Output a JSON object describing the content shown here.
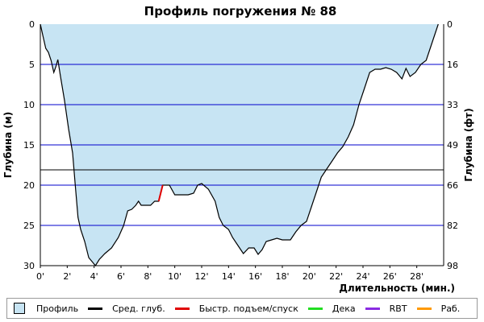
{
  "chart_data": {
    "type": "area",
    "title": "Профиль погружения № 88",
    "xlabel": "Длительность (мин.)",
    "ylabel_left": "Глубина (м)",
    "ylabel_right": "Глубина (фт)",
    "xlim": [
      0,
      30
    ],
    "ylim": [
      0,
      30
    ],
    "x_ticks": [
      "0'",
      "2'",
      "4'",
      "6'",
      "8'",
      "10'",
      "12'",
      "14'",
      "16'",
      "18'",
      "20'",
      "22'",
      "24'",
      "26'",
      "28'"
    ],
    "y_ticks_left": [
      "0",
      "5",
      "10",
      "15",
      "20",
      "25",
      "30"
    ],
    "y_ticks_right": [
      "0",
      "16",
      "33",
      "49",
      "66",
      "82",
      "98"
    ],
    "avg_depth": 18.1,
    "fill_color": "#c7e4f3",
    "grid_color": "#0000cc",
    "profile": [
      [
        0.0,
        0.0
      ],
      [
        0.2,
        1.5
      ],
      [
        0.4,
        3.0
      ],
      [
        0.6,
        3.5
      ],
      [
        0.8,
        4.5
      ],
      [
        1.0,
        6.0
      ],
      [
        1.15,
        5.3
      ],
      [
        1.3,
        4.4
      ],
      [
        1.5,
        6.5
      ],
      [
        1.8,
        9.5
      ],
      [
        2.1,
        13.0
      ],
      [
        2.4,
        16.0
      ],
      [
        2.6,
        20.0
      ],
      [
        2.8,
        24.0
      ],
      [
        3.0,
        25.5
      ],
      [
        3.3,
        27.0
      ],
      [
        3.6,
        29.0
      ],
      [
        3.9,
        29.6
      ],
      [
        4.1,
        30.0
      ],
      [
        4.4,
        29.2
      ],
      [
        4.8,
        28.5
      ],
      [
        5.3,
        27.8
      ],
      [
        5.8,
        26.5
      ],
      [
        6.2,
        25.0
      ],
      [
        6.5,
        23.2
      ],
      [
        6.8,
        23.0
      ],
      [
        7.1,
        22.5
      ],
      [
        7.3,
        22.0
      ],
      [
        7.5,
        22.5
      ],
      [
        7.9,
        22.5
      ],
      [
        8.2,
        22.5
      ],
      [
        8.5,
        22.0
      ],
      [
        8.8,
        22.0
      ],
      [
        9.1,
        20.0
      ],
      [
        9.6,
        20.0
      ],
      [
        10.0,
        21.2
      ],
      [
        10.5,
        21.2
      ],
      [
        11.0,
        21.2
      ],
      [
        11.4,
        21.0
      ],
      [
        11.7,
        20.0
      ],
      [
        12.0,
        19.8
      ],
      [
        12.5,
        20.5
      ],
      [
        13.0,
        22.0
      ],
      [
        13.3,
        24.0
      ],
      [
        13.6,
        25.0
      ],
      [
        14.0,
        25.5
      ],
      [
        14.3,
        26.5
      ],
      [
        14.7,
        27.5
      ],
      [
        15.1,
        28.5
      ],
      [
        15.5,
        27.8
      ],
      [
        15.9,
        27.8
      ],
      [
        16.2,
        28.6
      ],
      [
        16.5,
        28.0
      ],
      [
        16.8,
        27.0
      ],
      [
        17.2,
        26.8
      ],
      [
        17.6,
        26.6
      ],
      [
        18.0,
        26.8
      ],
      [
        18.6,
        26.8
      ],
      [
        19.0,
        25.8
      ],
      [
        19.4,
        25.0
      ],
      [
        19.8,
        24.5
      ],
      [
        20.2,
        22.5
      ],
      [
        20.5,
        21.0
      ],
      [
        20.9,
        19.0
      ],
      [
        21.3,
        18.0
      ],
      [
        21.7,
        17.0
      ],
      [
        22.1,
        16.0
      ],
      [
        22.5,
        15.2
      ],
      [
        22.9,
        14.0
      ],
      [
        23.3,
        12.5
      ],
      [
        23.7,
        10.0
      ],
      [
        24.1,
        8.0
      ],
      [
        24.5,
        6.0
      ],
      [
        24.9,
        5.6
      ],
      [
        25.3,
        5.6
      ],
      [
        25.7,
        5.4
      ],
      [
        26.1,
        5.6
      ],
      [
        26.5,
        6.0
      ],
      [
        26.9,
        6.8
      ],
      [
        27.2,
        5.5
      ],
      [
        27.5,
        6.5
      ],
      [
        27.9,
        6.0
      ],
      [
        28.3,
        5.0
      ],
      [
        28.7,
        4.5
      ],
      [
        29.0,
        3.0
      ],
      [
        29.3,
        1.5
      ],
      [
        29.6,
        0.0
      ]
    ],
    "fast_ascent_segment": [
      [
        8.8,
        22.0
      ],
      [
        8.95,
        21.0
      ],
      [
        9.1,
        20.0
      ]
    ],
    "legend": [
      {
        "label": "Профиль",
        "kind": "box",
        "color": "#c7e4f3"
      },
      {
        "label": "Сред. глуб.",
        "kind": "line",
        "color": "#000000"
      },
      {
        "label": "Быстр. подъем/спуск",
        "kind": "line",
        "color": "#e00000"
      },
      {
        "label": "Дека",
        "kind": "line",
        "color": "#22dd22"
      },
      {
        "label": "RBT",
        "kind": "line",
        "color": "#8a2be2"
      },
      {
        "label": "Раб.",
        "kind": "line",
        "color": "#ff9900"
      }
    ]
  }
}
